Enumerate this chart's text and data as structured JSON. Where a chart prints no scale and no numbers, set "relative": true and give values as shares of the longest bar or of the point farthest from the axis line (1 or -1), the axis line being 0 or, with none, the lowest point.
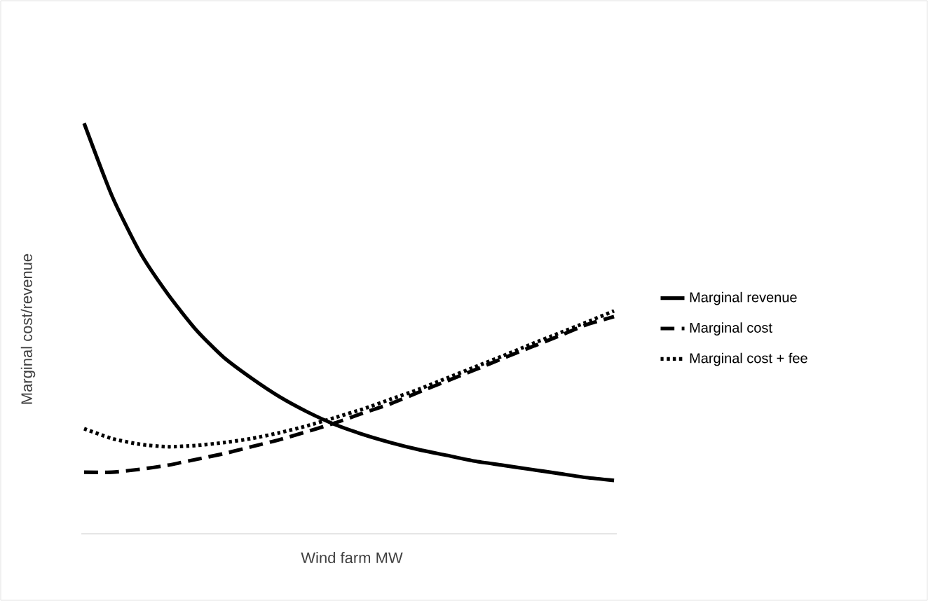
{
  "chart_data": {
    "type": "line",
    "relative": true,
    "xlabel": "Wind farm MW",
    "ylabel": "Marginal cost/revenue",
    "legend": "right",
    "marker": "none",
    "categories": [
      null,
      null,
      null,
      null,
      null,
      null,
      null,
      null,
      null,
      null,
      null,
      null,
      null,
      null,
      null,
      null,
      null,
      null,
      null,
      null
    ],
    "series": [
      {
        "name": "Marginal revenue",
        "color": "#000000",
        "line_style": "solid",
        "values": [
          1.0,
          0.823,
          0.686,
          0.584,
          0.498,
          0.43,
          0.379,
          0.334,
          0.297,
          0.266,
          0.242,
          0.222,
          0.205,
          0.191,
          0.177,
          0.167,
          0.157,
          0.147,
          0.137,
          0.13
        ]
      },
      {
        "name": "Marginal cost",
        "color": "#000000",
        "line_style": "dashed",
        "values": [
          0.15,
          0.15,
          0.157,
          0.167,
          0.181,
          0.195,
          0.212,
          0.229,
          0.249,
          0.27,
          0.294,
          0.317,
          0.345,
          0.372,
          0.399,
          0.427,
          0.454,
          0.481,
          0.509,
          0.529
        ]
      },
      {
        "name": "Marginal cost + fee",
        "color": "#000000",
        "line_style": "dotted",
        "values": [
          0.256,
          0.232,
          0.218,
          0.212,
          0.215,
          0.222,
          0.232,
          0.246,
          0.263,
          0.283,
          0.304,
          0.328,
          0.352,
          0.379,
          0.406,
          0.433,
          0.461,
          0.488,
          0.515,
          0.543
        ]
      }
    ]
  }
}
